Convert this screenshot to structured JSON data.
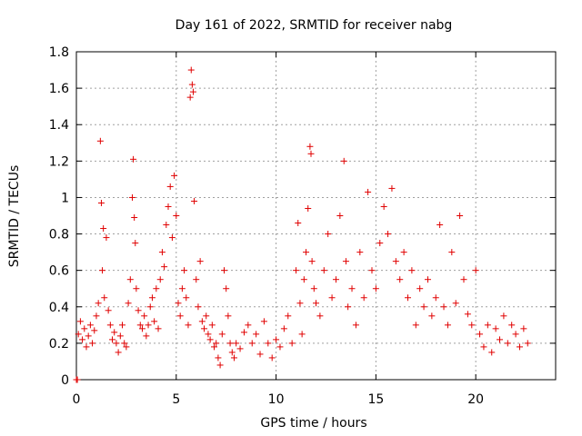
{
  "chart_data": {
    "type": "scatter",
    "title": "Day 161 of 2022, SRMTID for receiver nabg",
    "xlabel": "GPS time / hours",
    "ylabel": "SRMTID / TECUs",
    "xlim": [
      0,
      24
    ],
    "ylim": [
      0,
      1.8
    ],
    "xticks": [
      0,
      5,
      10,
      15,
      20
    ],
    "yticks": [
      0,
      0.2,
      0.4,
      0.6,
      0.8,
      1,
      1.2,
      1.4,
      1.6,
      1.8
    ],
    "xtick_labels": [
      "0",
      "5",
      "10",
      "15",
      "20"
    ],
    "ytick_labels": [
      "0",
      "0.2",
      "0.4",
      "0.6",
      "0.8",
      "1",
      "1.2",
      "1.4",
      "1.6",
      "1.8"
    ],
    "grid": true,
    "marker": "+",
    "color": "#e00000",
    "series": [
      {
        "name": "SRMTID",
        "points": [
          [
            0.0,
            0.0
          ],
          [
            0.05,
            0.0
          ],
          [
            0.1,
            0.25
          ],
          [
            0.2,
            0.32
          ],
          [
            0.3,
            0.22
          ],
          [
            0.4,
            0.28
          ],
          [
            0.5,
            0.18
          ],
          [
            0.6,
            0.24
          ],
          [
            0.7,
            0.3
          ],
          [
            0.8,
            0.2
          ],
          [
            0.9,
            0.27
          ],
          [
            1.0,
            0.35
          ],
          [
            1.1,
            0.42
          ],
          [
            1.2,
            1.31
          ],
          [
            1.25,
            0.97
          ],
          [
            1.3,
            0.6
          ],
          [
            1.35,
            0.83
          ],
          [
            1.4,
            0.45
          ],
          [
            1.5,
            0.78
          ],
          [
            1.6,
            0.38
          ],
          [
            1.7,
            0.3
          ],
          [
            1.8,
            0.22
          ],
          [
            1.9,
            0.26
          ],
          [
            2.0,
            0.2
          ],
          [
            2.1,
            0.15
          ],
          [
            2.2,
            0.24
          ],
          [
            2.3,
            0.3
          ],
          [
            2.4,
            0.2
          ],
          [
            2.5,
            0.18
          ],
          [
            2.6,
            0.42
          ],
          [
            2.7,
            0.55
          ],
          [
            2.8,
            1.0
          ],
          [
            2.85,
            1.21
          ],
          [
            2.9,
            0.89
          ],
          [
            2.95,
            0.75
          ],
          [
            3.0,
            0.5
          ],
          [
            3.1,
            0.38
          ],
          [
            3.2,
            0.3
          ],
          [
            3.3,
            0.28
          ],
          [
            3.4,
            0.35
          ],
          [
            3.5,
            0.24
          ],
          [
            3.6,
            0.3
          ],
          [
            3.7,
            0.4
          ],
          [
            3.8,
            0.45
          ],
          [
            3.9,
            0.32
          ],
          [
            4.0,
            0.5
          ],
          [
            4.1,
            0.28
          ],
          [
            4.2,
            0.55
          ],
          [
            4.3,
            0.7
          ],
          [
            4.4,
            0.62
          ],
          [
            4.5,
            0.85
          ],
          [
            4.6,
            0.95
          ],
          [
            4.7,
            1.06
          ],
          [
            4.8,
            0.78
          ],
          [
            4.9,
            1.12
          ],
          [
            5.0,
            0.9
          ],
          [
            5.1,
            0.42
          ],
          [
            5.2,
            0.35
          ],
          [
            5.3,
            0.5
          ],
          [
            5.4,
            0.6
          ],
          [
            5.5,
            0.45
          ],
          [
            5.6,
            0.3
          ],
          [
            5.7,
            1.55
          ],
          [
            5.75,
            1.7
          ],
          [
            5.8,
            1.62
          ],
          [
            5.85,
            1.58
          ],
          [
            5.9,
            0.98
          ],
          [
            6.0,
            0.55
          ],
          [
            6.1,
            0.4
          ],
          [
            6.2,
            0.65
          ],
          [
            6.3,
            0.32
          ],
          [
            6.4,
            0.28
          ],
          [
            6.5,
            0.35
          ],
          [
            6.6,
            0.25
          ],
          [
            6.7,
            0.22
          ],
          [
            6.8,
            0.3
          ],
          [
            6.9,
            0.18
          ],
          [
            7.0,
            0.2
          ],
          [
            7.1,
            0.12
          ],
          [
            7.2,
            0.08
          ],
          [
            7.3,
            0.25
          ],
          [
            7.4,
            0.6
          ],
          [
            7.5,
            0.5
          ],
          [
            7.6,
            0.35
          ],
          [
            7.7,
            0.2
          ],
          [
            7.8,
            0.15
          ],
          [
            7.9,
            0.12
          ],
          [
            8.0,
            0.2
          ],
          [
            8.2,
            0.17
          ],
          [
            8.4,
            0.26
          ],
          [
            8.6,
            0.3
          ],
          [
            8.8,
            0.2
          ],
          [
            9.0,
            0.25
          ],
          [
            9.2,
            0.14
          ],
          [
            9.4,
            0.32
          ],
          [
            9.6,
            0.2
          ],
          [
            9.8,
            0.12
          ],
          [
            10.0,
            0.22
          ],
          [
            10.2,
            0.18
          ],
          [
            10.4,
            0.28
          ],
          [
            10.6,
            0.35
          ],
          [
            10.8,
            0.2
          ],
          [
            11.0,
            0.6
          ],
          [
            11.1,
            0.86
          ],
          [
            11.2,
            0.42
          ],
          [
            11.3,
            0.25
          ],
          [
            11.4,
            0.55
          ],
          [
            11.5,
            0.7
          ],
          [
            11.6,
            0.94
          ],
          [
            11.7,
            1.28
          ],
          [
            11.75,
            1.24
          ],
          [
            11.8,
            0.65
          ],
          [
            11.9,
            0.5
          ],
          [
            12.0,
            0.42
          ],
          [
            12.2,
            0.35
          ],
          [
            12.4,
            0.6
          ],
          [
            12.6,
            0.8
          ],
          [
            12.8,
            0.45
          ],
          [
            13.0,
            0.55
          ],
          [
            13.2,
            0.9
          ],
          [
            13.4,
            1.2
          ],
          [
            13.5,
            0.65
          ],
          [
            13.6,
            0.4
          ],
          [
            13.8,
            0.5
          ],
          [
            14.0,
            0.3
          ],
          [
            14.2,
            0.7
          ],
          [
            14.4,
            0.45
          ],
          [
            14.6,
            1.03
          ],
          [
            14.8,
            0.6
          ],
          [
            15.0,
            0.5
          ],
          [
            15.2,
            0.75
          ],
          [
            15.4,
            0.95
          ],
          [
            15.6,
            0.8
          ],
          [
            15.8,
            1.05
          ],
          [
            16.0,
            0.65
          ],
          [
            16.2,
            0.55
          ],
          [
            16.4,
            0.7
          ],
          [
            16.6,
            0.45
          ],
          [
            16.8,
            0.6
          ],
          [
            17.0,
            0.3
          ],
          [
            17.2,
            0.5
          ],
          [
            17.4,
            0.4
          ],
          [
            17.6,
            0.55
          ],
          [
            17.8,
            0.35
          ],
          [
            18.0,
            0.45
          ],
          [
            18.2,
            0.85
          ],
          [
            18.4,
            0.4
          ],
          [
            18.6,
            0.3
          ],
          [
            18.8,
            0.7
          ],
          [
            19.0,
            0.42
          ],
          [
            19.2,
            0.9
          ],
          [
            19.4,
            0.55
          ],
          [
            19.6,
            0.36
          ],
          [
            19.8,
            0.3
          ],
          [
            20.0,
            0.6
          ],
          [
            20.2,
            0.25
          ],
          [
            20.4,
            0.18
          ],
          [
            20.6,
            0.3
          ],
          [
            20.8,
            0.15
          ],
          [
            21.0,
            0.28
          ],
          [
            21.2,
            0.22
          ],
          [
            21.4,
            0.35
          ],
          [
            21.6,
            0.2
          ],
          [
            21.8,
            0.3
          ],
          [
            22.0,
            0.25
          ],
          [
            22.2,
            0.18
          ],
          [
            22.4,
            0.28
          ],
          [
            22.6,
            0.2
          ]
        ]
      }
    ]
  }
}
